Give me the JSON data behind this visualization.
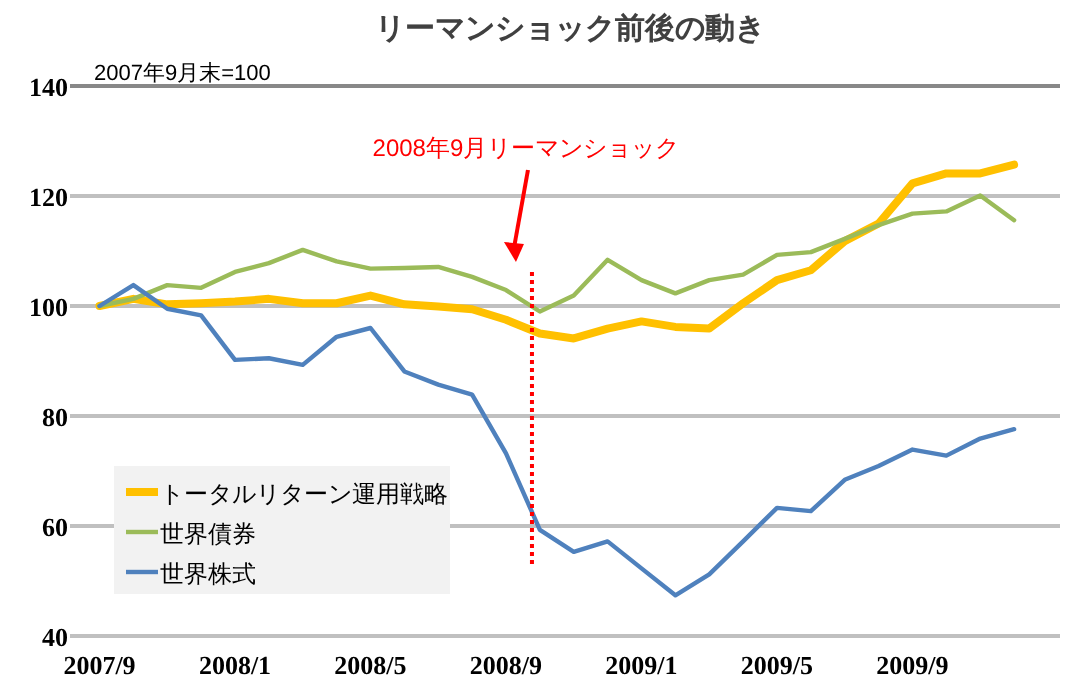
{
  "chart_data": {
    "type": "line",
    "title": "リーマンショック前後の動き",
    "annotations": [
      "2007年9月末=100"
    ],
    "x": [
      "2007-09",
      "2007-10",
      "2007-11",
      "2007-12",
      "2008-01",
      "2008-02",
      "2008-03",
      "2008-04",
      "2008-05",
      "2008-06",
      "2008-07",
      "2008-08",
      "2008-09",
      "2008-10",
      "2008-11",
      "2008-12",
      "2009-01",
      "2009-02",
      "2009-03",
      "2009-04",
      "2009-05",
      "2009-06",
      "2009-07",
      "2009-08",
      "2009-09",
      "2009-10",
      "2009-11",
      "2009-12"
    ],
    "series": [
      {
        "name": "トータルリターン運用戦略",
        "color": "#ffc000",
        "values": [
          100,
          101.3,
          100.3,
          100.5,
          100.8,
          101.3,
          100.5,
          100.5,
          101.9,
          100.3,
          99.9,
          99.4,
          97.5,
          95,
          94.1,
          95.9,
          97.2,
          96.2,
          95.9,
          100.5,
          104.7,
          106.5,
          111.8,
          115,
          122.3,
          124.1,
          124.1,
          125.7
        ]
      },
      {
        "name": "世界債券",
        "color": "#9bbb59",
        "values": [
          100,
          101.3,
          103.8,
          103.3,
          106.2,
          107.8,
          110.2,
          108.1,
          106.8,
          106.9,
          107.1,
          105.3,
          102.9,
          99,
          101.9,
          108.4,
          104.7,
          102.3,
          104.7,
          105.7,
          109.3,
          109.8,
          112.2,
          114.7,
          116.8,
          117.2,
          120.1,
          115.6
        ]
      },
      {
        "name": "世界株式",
        "color": "#4f81bd",
        "values": [
          100,
          103.8,
          99.5,
          98.3,
          90.2,
          90.5,
          89.3,
          94.4,
          96,
          88.1,
          85.7,
          83.9,
          73.2,
          59.3,
          55.3,
          57.2,
          52.3,
          47.4,
          51.2,
          57.2,
          63.3,
          62.7,
          68.4,
          70.9,
          73.9,
          72.8,
          75.9,
          77.6
        ]
      }
    ],
    "xlim": [
      "2007-08-05",
      "2010-01-12"
    ],
    "xticks": [
      {
        "value": "2007-09",
        "label": "2007/9"
      },
      {
        "value": "2008-01",
        "label": "2008/1"
      },
      {
        "value": "2008-05",
        "label": "2008/5"
      },
      {
        "value": "2008-09",
        "label": "2008/9"
      },
      {
        "value": "2009-01",
        "label": "2009/1"
      },
      {
        "value": "2009-05",
        "label": "2009/5"
      },
      {
        "value": "2009-09",
        "label": "2009/9"
      }
    ],
    "ylim": [
      40,
      140
    ],
    "yticks": [
      40,
      60,
      80,
      100,
      120,
      140
    ],
    "ref_lines": [
      {
        "axis": "x",
        "value": "2008-09-24",
        "label": "2008年9月リーマンショック",
        "color": "#ff0000",
        "line_style": "dotted"
      }
    ],
    "grid": "y",
    "legend": "bottom left",
    "marker": "none",
    "line_style": "solid"
  }
}
